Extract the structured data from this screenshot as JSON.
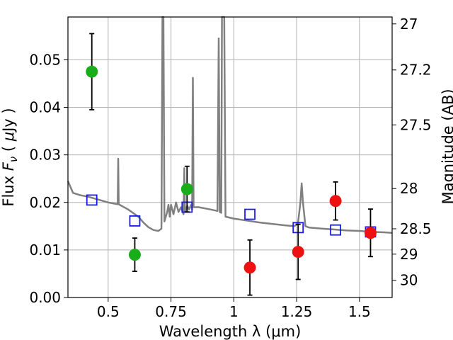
{
  "chart_data": {
    "type": "scatter",
    "xlabel": "Wavelength  λ (μm)",
    "ylabel": "Flux  F_ν  ( μJy )",
    "ylabel_parts": {
      "a": "Flux  ",
      "b": "F",
      "c": "ν",
      "d": "  ( ",
      "e": "μ",
      "f": "Jy )"
    },
    "y2label": "Magnitude (AB)",
    "xlim": [
      0.34,
      1.63
    ],
    "ylim": [
      0.0,
      0.059
    ],
    "grid": true,
    "x_ticks": [
      0.5,
      0.75,
      1.0,
      1.25,
      1.5
    ],
    "x_tick_labels": [
      "0.5",
      "0.75",
      "1",
      "1.25",
      "1.5"
    ],
    "y_ticks": [
      0.0,
      0.01,
      0.02,
      0.03,
      0.04,
      0.05
    ],
    "y_tick_labels": [
      "0.00",
      "0.01",
      "0.02",
      "0.03",
      "0.04",
      "0.05"
    ],
    "y2_ticks": [
      27,
      27.2,
      27.5,
      28,
      28.5,
      29,
      30
    ],
    "y2_tick_labels": [
      "27",
      "27.2",
      "27.5",
      "28",
      "28.5",
      "29",
      "30"
    ],
    "colors": {
      "green": "#1aad1a",
      "red": "#ee1111",
      "blue": "#1a1aee",
      "model": "#808080",
      "grid": "#b0b0b0"
    },
    "series": [
      {
        "marker": "circle",
        "color": "#1aad1a",
        "points": [
          {
            "x": 0.435,
            "y": 0.0475,
            "yerr": 0.008
          },
          {
            "x": 0.606,
            "y": 0.009,
            "yerr": 0.0035
          },
          {
            "x": 0.814,
            "y": 0.0228,
            "yerr": 0.0048
          }
        ]
      },
      {
        "marker": "circle",
        "color": "#ee1111",
        "points": [
          {
            "x": 1.064,
            "y": 0.0063,
            "yerr": 0.0058
          },
          {
            "x": 1.256,
            "y": 0.0096,
            "yerr": 0.0058
          },
          {
            "x": 1.405,
            "y": 0.0203,
            "yerr": 0.004
          },
          {
            "x": 1.544,
            "y": 0.0136,
            "yerr": 0.005
          }
        ]
      },
      {
        "marker": "square",
        "color": "#1a1aee",
        "points": [
          {
            "x": 0.435,
            "y": 0.0205
          },
          {
            "x": 0.606,
            "y": 0.0161
          },
          {
            "x": 0.814,
            "y": 0.019
          },
          {
            "x": 1.064,
            "y": 0.0175
          },
          {
            "x": 1.256,
            "y": 0.0147
          },
          {
            "x": 1.405,
            "y": 0.0142
          },
          {
            "x": 1.544,
            "y": 0.0138
          }
        ]
      },
      {
        "marker": "line",
        "color": "#808080",
        "points": [
          [
            0.34,
            0.0245
          ],
          [
            0.36,
            0.022
          ],
          [
            0.39,
            0.0215
          ],
          [
            0.42,
            0.0212
          ],
          [
            0.46,
            0.0206
          ],
          [
            0.5,
            0.02
          ],
          [
            0.538,
            0.0196
          ],
          [
            0.54,
            0.0292
          ],
          [
            0.542,
            0.0196
          ],
          [
            0.58,
            0.0185
          ],
          [
            0.62,
            0.017
          ],
          [
            0.64,
            0.0158
          ],
          [
            0.66,
            0.0148
          ],
          [
            0.68,
            0.0142
          ],
          [
            0.7,
            0.014
          ],
          [
            0.712,
            0.0145
          ],
          [
            0.716,
            0.059
          ],
          [
            0.72,
            0.059
          ],
          [
            0.724,
            0.016
          ],
          [
            0.735,
            0.018
          ],
          [
            0.74,
            0.0195
          ],
          [
            0.745,
            0.017
          ],
          [
            0.75,
            0.0195
          ],
          [
            0.76,
            0.0175
          ],
          [
            0.77,
            0.02
          ],
          [
            0.78,
            0.018
          ],
          [
            0.79,
            0.019
          ],
          [
            0.8,
            0.0175
          ],
          [
            0.803,
            0.0272
          ],
          [
            0.806,
            0.018
          ],
          [
            0.815,
            0.0193
          ],
          [
            0.822,
            0.0185
          ],
          [
            0.83,
            0.0195
          ],
          [
            0.834,
            0.0185
          ],
          [
            0.837,
            0.0462
          ],
          [
            0.84,
            0.019
          ],
          [
            0.86,
            0.019
          ],
          [
            0.9,
            0.0186
          ],
          [
            0.935,
            0.0182
          ],
          [
            0.94,
            0.0545
          ],
          [
            0.944,
            0.018
          ],
          [
            0.95,
            0.0178
          ],
          [
            0.953,
            0.059
          ],
          [
            0.962,
            0.059
          ],
          [
            0.967,
            0.017
          ],
          [
            1.0,
            0.0166
          ],
          [
            1.05,
            0.0162
          ],
          [
            1.1,
            0.0158
          ],
          [
            1.15,
            0.0155
          ],
          [
            1.2,
            0.0152
          ],
          [
            1.24,
            0.015
          ],
          [
            1.255,
            0.0155
          ],
          [
            1.265,
            0.02
          ],
          [
            1.27,
            0.024
          ],
          [
            1.275,
            0.02
          ],
          [
            1.285,
            0.015
          ],
          [
            1.3,
            0.0147
          ],
          [
            1.35,
            0.0145
          ],
          [
            1.4,
            0.0143
          ],
          [
            1.45,
            0.0141
          ],
          [
            1.5,
            0.014
          ],
          [
            1.55,
            0.0138
          ],
          [
            1.6,
            0.0137
          ],
          [
            1.63,
            0.0136
          ]
        ]
      }
    ]
  }
}
